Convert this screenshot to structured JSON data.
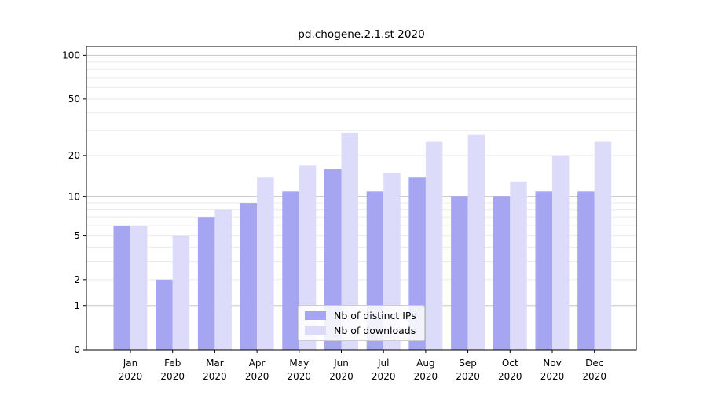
{
  "chart_data": {
    "type": "bar",
    "title": "pd.chogene.2.1.st 2020",
    "categories": [
      "Jan",
      "Feb",
      "Mar",
      "Apr",
      "May",
      "Jun",
      "Jul",
      "Aug",
      "Sep",
      "Oct",
      "Nov",
      "Dec"
    ],
    "category_year_label": "2020",
    "series": [
      {
        "name": "Nb of distinct IPs",
        "color": "#a5a5f2",
        "values": [
          6,
          2,
          7,
          9,
          11,
          16,
          11,
          14,
          10,
          10,
          11,
          11
        ]
      },
      {
        "name": "Nb of downloads",
        "color": "#dcdcfa",
        "values": [
          6,
          5,
          8,
          14,
          17,
          29,
          15,
          25,
          28,
          13,
          20,
          25
        ]
      }
    ],
    "y_ticks": [
      0,
      1,
      2,
      5,
      10,
      20,
      50,
      100
    ],
    "y_minor_gridlines": [
      2,
      3,
      4,
      5,
      6,
      7,
      8,
      9,
      20,
      30,
      40,
      50,
      60,
      70,
      80,
      90
    ],
    "y_major_gridlines": [
      1,
      10,
      100
    ],
    "y_scale": "log(1+v)",
    "ylim": [
      0,
      115
    ],
    "grid": true,
    "legend_position": "lower center",
    "colors": {
      "background": "#ffffff",
      "frame": "#000000",
      "text": "#000000",
      "major_grid": "#c6c6c6",
      "minor_grid": "#ebebeb"
    }
  }
}
